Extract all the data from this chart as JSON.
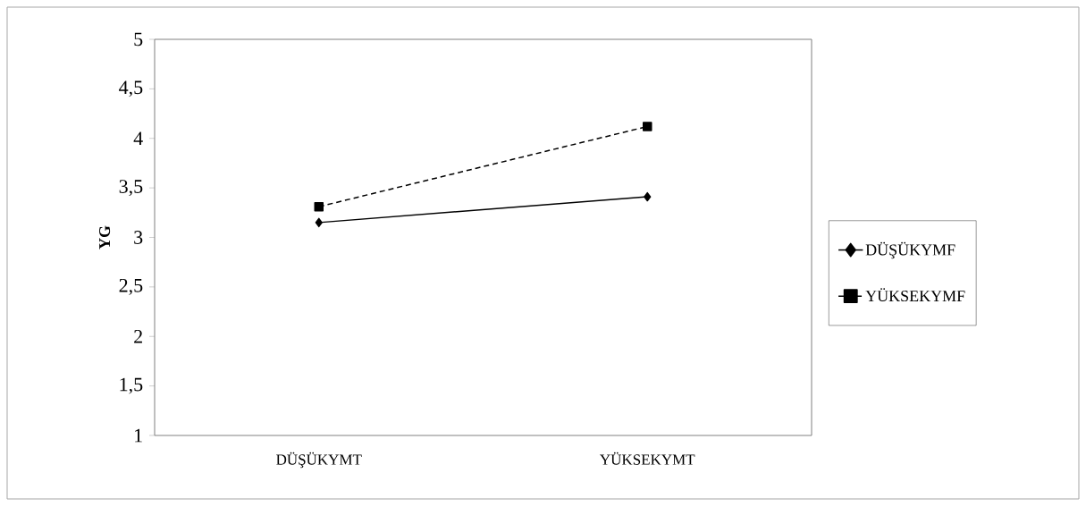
{
  "chart_data": {
    "type": "line",
    "ylabel": "YG",
    "categories": [
      "DÜŞÜKYMT",
      "YÜKSEKYMT"
    ],
    "series": [
      {
        "name": "DÜŞÜKYMF",
        "color": "#000000",
        "values": [
          3.15,
          3.41
        ],
        "marker": "diamond",
        "line_style": "solid"
      },
      {
        "name": "YÜKSEKYMF",
        "color": "#000000",
        "values": [
          3.31,
          4.12
        ],
        "marker": "square",
        "line_style": "dashed"
      }
    ],
    "ylim": [
      1,
      5
    ],
    "yticks": [
      {
        "value": 1,
        "label": "1"
      },
      {
        "value": 1.5,
        "label": "1,5"
      },
      {
        "value": 2,
        "label": "2"
      },
      {
        "value": 2.5,
        "label": "2,5"
      },
      {
        "value": 3,
        "label": "3"
      },
      {
        "value": 3.5,
        "label": "3,5"
      },
      {
        "value": 4,
        "label": "4"
      },
      {
        "value": 4.5,
        "label": "4,5"
      },
      {
        "value": 5,
        "label": "5"
      }
    ],
    "grid": false,
    "legend": "right"
  }
}
